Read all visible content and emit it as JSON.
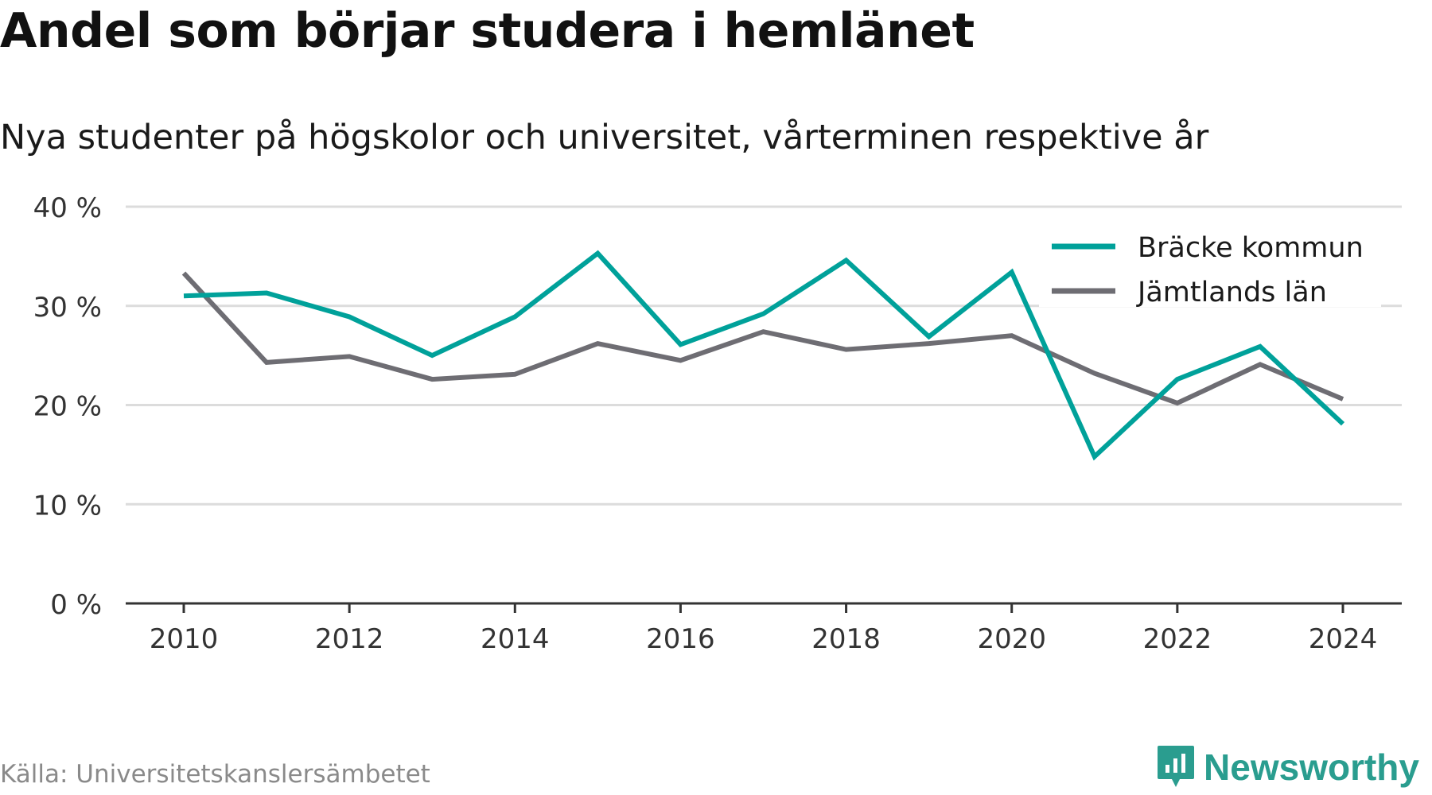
{
  "title": "Andel som börjar studera i hemlänet",
  "subtitle": "Nya studenter på högskolor och universitet, vårterminen respektive år",
  "source": "Källa: Universitetskanslersämbetet",
  "brand": "Newsworthy",
  "colors": {
    "series1": "#00a19a",
    "series2": "#6e6d73",
    "grid": "#dcdcdc",
    "axis": "#333333",
    "brand": "#2a9d8f"
  },
  "chart_data": {
    "type": "line",
    "title": "Andel som börjar studera i hemlänet",
    "subtitle": "Nya studenter på högskolor och universitet, vårterminen respektive år",
    "x": [
      2010,
      2011,
      2012,
      2013,
      2014,
      2015,
      2016,
      2017,
      2018,
      2019,
      2020,
      2021,
      2022,
      2023,
      2024
    ],
    "series": [
      {
        "name": "Bräcke kommun",
        "color": "#00a19a",
        "values": [
          31.0,
          31.3,
          28.9,
          25.0,
          28.9,
          35.3,
          26.1,
          29.2,
          34.6,
          26.9,
          33.4,
          14.8,
          22.6,
          25.9,
          18.1
        ]
      },
      {
        "name": "Jämtlands län",
        "color": "#6e6d73",
        "values": [
          33.3,
          24.3,
          24.9,
          22.6,
          23.1,
          26.2,
          24.5,
          27.4,
          25.6,
          26.2,
          27.0,
          23.2,
          20.2,
          24.1,
          20.6
        ]
      }
    ],
    "ylim": [
      0,
      40
    ],
    "yticks": [
      0,
      10,
      20,
      30,
      40
    ],
    "ytick_labels": [
      "0 %",
      "10 %",
      "20 %",
      "30 %",
      "40 %"
    ],
    "xticks": [
      2010,
      2012,
      2014,
      2016,
      2018,
      2020,
      2022,
      2024
    ],
    "xtick_labels": [
      "2010",
      "2012",
      "2014",
      "2016",
      "2018",
      "2020",
      "2022",
      "2024"
    ],
    "xlabel": "",
    "ylabel": "",
    "grid": true,
    "legend_position": "top-right"
  }
}
